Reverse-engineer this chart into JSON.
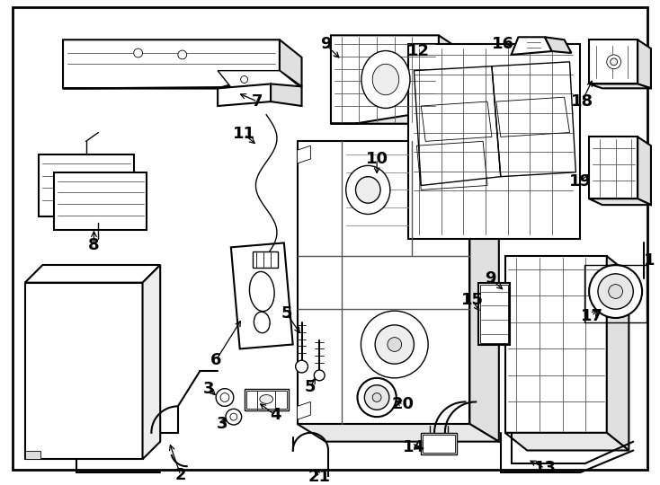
{
  "background_color": "#ffffff",
  "border_color": "#000000",
  "line_color": "#000000",
  "fig_width": 7.34,
  "fig_height": 5.4,
  "dpi": 100,
  "font_size_labels": 13,
  "label_font_weight": "bold"
}
